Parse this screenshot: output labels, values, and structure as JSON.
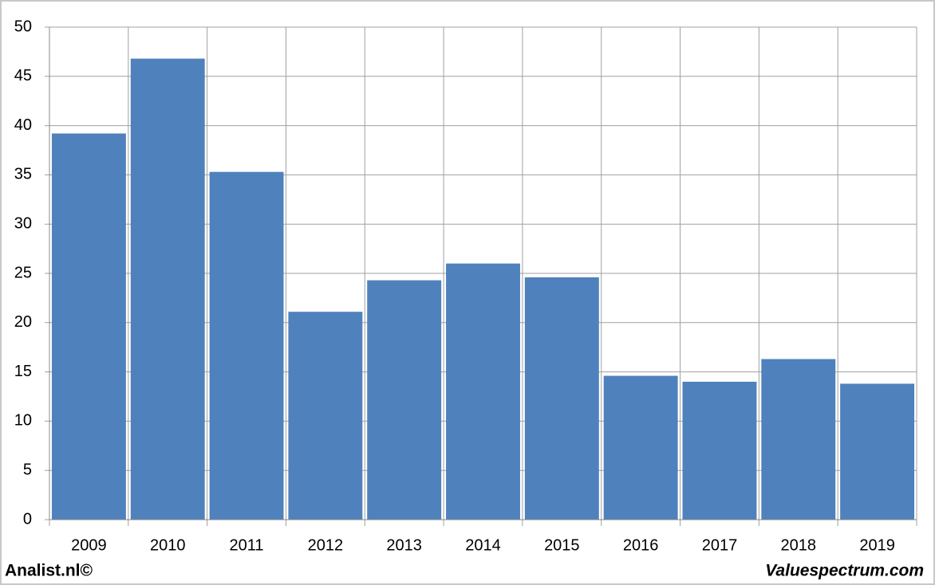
{
  "chart_data": {
    "type": "bar",
    "categories": [
      "2009",
      "2010",
      "2011",
      "2012",
      "2013",
      "2014",
      "2015",
      "2016",
      "2017",
      "2018",
      "2019"
    ],
    "values": [
      39.2,
      46.8,
      35.3,
      21.1,
      24.3,
      26.0,
      24.6,
      14.6,
      14.0,
      16.3,
      13.8
    ],
    "color": "#4f81bd",
    "ylim": [
      0,
      50
    ],
    "yticks": [
      0,
      5,
      10,
      15,
      20,
      25,
      30,
      35,
      40,
      45,
      50
    ],
    "grid": true
  },
  "footer": {
    "left": "Analist.nl©",
    "right": "Valuespectrum.com"
  }
}
